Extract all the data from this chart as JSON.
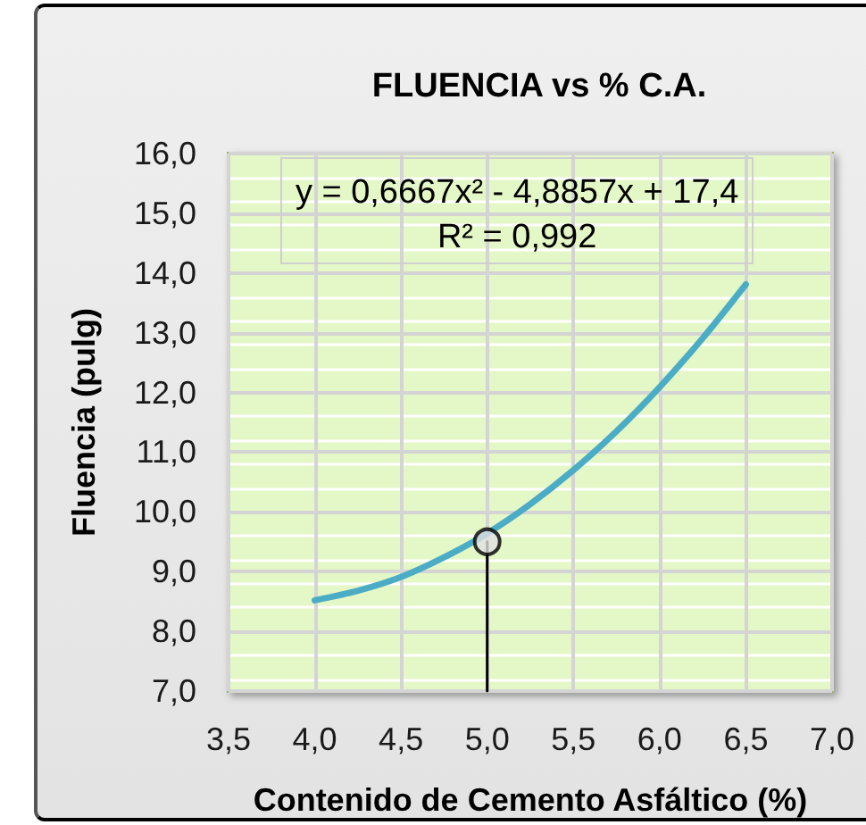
{
  "chart_data": {
    "type": "line",
    "title": "FLUENCIA vs % C.A.",
    "xlabel": "Contenido de Cemento Asfáltico (%)",
    "ylabel": "Fluencia (pulg)",
    "annotations": [
      "y = 0,6667x² - 4,8857x + 17,4",
      "R² = 0,992"
    ],
    "series": [
      {
        "color": "#4bacc6",
        "marker": "none",
        "x": [
          4.0,
          4.25,
          4.5,
          4.75,
          5.0,
          5.25,
          5.5,
          5.75,
          6.0,
          6.25,
          6.5
        ],
        "values": [
          8.52,
          8.68,
          8.91,
          9.24,
          9.64,
          10.13,
          10.7,
          11.35,
          12.09,
          12.91,
          13.81
        ]
      },
      {
        "color": "#000000",
        "marker": "none",
        "x": [
          5.0,
          5.0
        ],
        "values": [
          7.0,
          9.5
        ]
      },
      {
        "type": "scatter",
        "color": "#e0e0e0",
        "marker": "circle",
        "x": [
          5.0
        ],
        "values": [
          9.5
        ]
      }
    ],
    "xlim": [
      3.5,
      7.0
    ],
    "xticks": [
      {
        "value": 3.5,
        "label": "3,5"
      },
      {
        "value": 4.0,
        "label": "4,0"
      },
      {
        "value": 4.5,
        "label": "4,5"
      },
      {
        "value": 5.0,
        "label": "5,0"
      },
      {
        "value": 5.5,
        "label": "5,5"
      },
      {
        "value": 6.0,
        "label": "6,0"
      },
      {
        "value": 6.5,
        "label": "6,5"
      },
      {
        "value": 7.0,
        "label": "7,0"
      }
    ],
    "ylim": [
      7,
      16
    ],
    "yticks": [
      {
        "value": 7,
        "label": "7,0"
      },
      {
        "value": 8,
        "label": "8,0"
      },
      {
        "value": 9,
        "label": "9,0"
      },
      {
        "value": 10,
        "label": "10,0"
      },
      {
        "value": 11,
        "label": "11,0"
      },
      {
        "value": 12,
        "label": "12,0"
      },
      {
        "value": 13,
        "label": "13,0"
      },
      {
        "value": 14,
        "label": "14,0"
      },
      {
        "value": 15,
        "label": "15,0"
      },
      {
        "value": 16,
        "label": "16,0"
      }
    ],
    "grid": true
  }
}
